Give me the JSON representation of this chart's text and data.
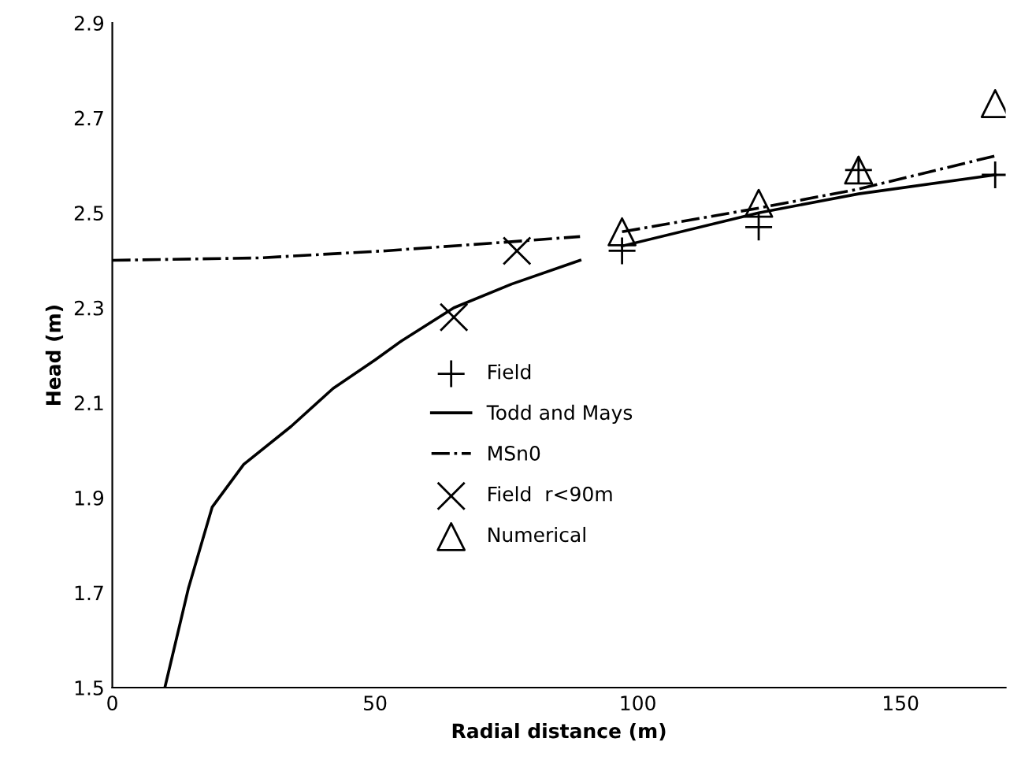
{
  "chart_data": {
    "type": "line",
    "xlabel": "Radial distance (m)",
    "ylabel": "Head (m)",
    "xlim": [
      0,
      170
    ],
    "xticks": [
      0,
      50,
      100,
      150
    ],
    "ylim": [
      1.5,
      2.9
    ],
    "yticks": [
      1.5,
      1.7,
      1.9,
      2.1,
      2.3,
      2.5,
      2.7,
      2.9
    ],
    "grid": false,
    "legend": "center",
    "series": [
      {
        "name": "Field",
        "type": "scatter",
        "marker": "plus",
        "color": "#000000",
        "x": [
          97,
          123,
          142,
          168
        ],
        "values": [
          2.42,
          2.47,
          2.59,
          2.58
        ]
      },
      {
        "name": "Todd and Mays",
        "line_style": "solid",
        "color": "#000000",
        "x": [
          10,
          14.5,
          19,
          25,
          34,
          42,
          50,
          55,
          65,
          76,
          89,
          93,
          97,
          123,
          142,
          168
        ],
        "values": [
          1.5,
          1.71,
          1.88,
          1.97,
          2.05,
          2.13,
          2.19,
          2.23,
          2.3,
          2.35,
          2.4,
          null,
          2.43,
          2.5,
          2.54,
          2.58
        ]
      },
      {
        "name": "MSn0",
        "line_style": "dashdot",
        "color": "#000000",
        "x": [
          0,
          28,
          52,
          77,
          89,
          93,
          97,
          123,
          142,
          168
        ],
        "values": [
          2.4,
          2.405,
          2.42,
          2.44,
          2.45,
          null,
          2.46,
          2.51,
          2.55,
          2.62
        ]
      },
      {
        "name": "Field  r<90m",
        "type": "scatter",
        "marker": "cross",
        "color": "#000000",
        "x": [
          65,
          77
        ],
        "values": [
          2.28,
          2.42
        ]
      },
      {
        "name": "Numerical",
        "type": "scatter",
        "marker": "triangle",
        "color": "#000000",
        "x": [
          97,
          123,
          142,
          168
        ],
        "values": [
          2.46,
          2.52,
          2.59,
          2.73
        ]
      }
    ]
  }
}
